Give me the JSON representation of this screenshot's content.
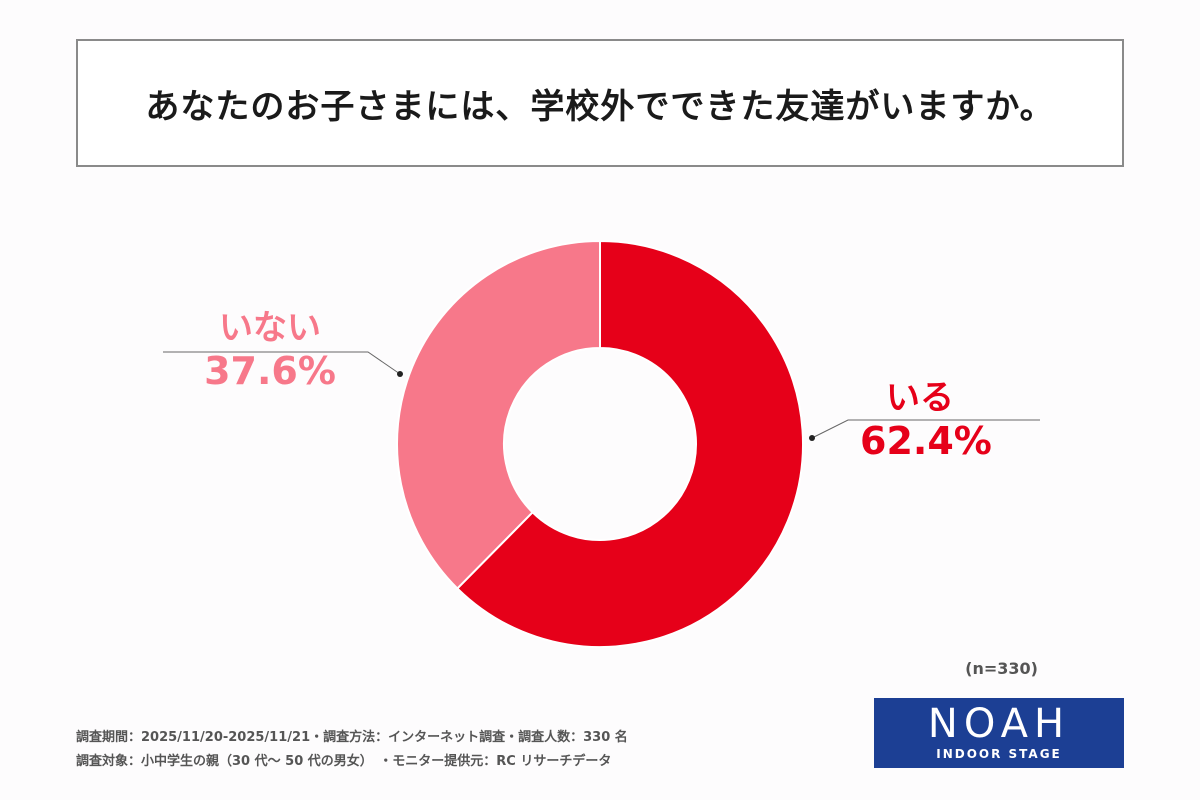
{
  "title": "あなたのお子さまには、学校外でできた友達がいますか。",
  "chart_data": {
    "type": "pie",
    "categories": [
      "いる",
      "いない"
    ],
    "values": [
      62.4,
      37.6
    ],
    "value_labels": [
      "62.4%",
      "37.6%"
    ],
    "colors": [
      "#e60019",
      "#f7788a"
    ],
    "hole": "donut"
  },
  "sample_size": "(n=330)",
  "footer": {
    "line1": "調査期間：2025/11/20-2025/11/21・調査方法：インターネット調査・調査人数：330 名",
    "line2": "調査対象：小中学生の親（30 代〜 50 代の男女）　・モニター提供元：RC リサーチデータ"
  },
  "logo": {
    "name": "NOAH",
    "subtitle": "INDOOR STAGE"
  }
}
